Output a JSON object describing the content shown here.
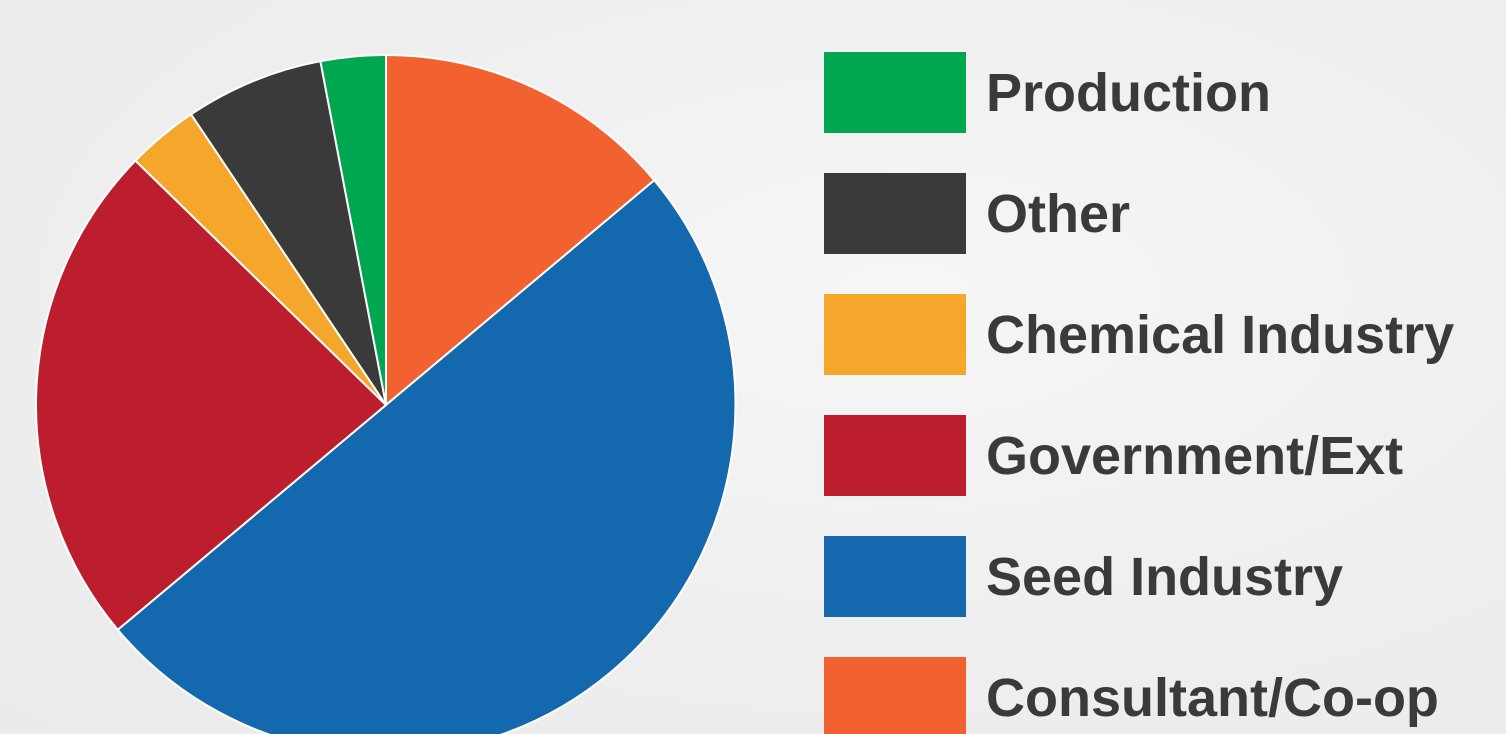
{
  "chart_data": {
    "type": "pie",
    "title": "",
    "start": "top",
    "direction": "clockwise",
    "slices": [
      {
        "label": "Consultant/Co-op",
        "value": 13.9,
        "color": "#f26130"
      },
      {
        "label": "Seed Industry",
        "value": 50.0,
        "color": "#1469ae"
      },
      {
        "label": "Government/Ext",
        "value": 23.4,
        "color": "#bc1e2d"
      },
      {
        "label": "Chemical Industry",
        "value": 3.3,
        "color": "#f4a72b"
      },
      {
        "label": "Other",
        "value": 6.4,
        "color": "#3a3a3a"
      },
      {
        "label": "Production",
        "value": 3.0,
        "color": "#00a650"
      }
    ],
    "legend": {
      "position": "right",
      "order": [
        "Production",
        "Other",
        "Chemical Industry",
        "Government/Ext",
        "Seed Industry",
        "Consultant/Co-op"
      ]
    }
  }
}
